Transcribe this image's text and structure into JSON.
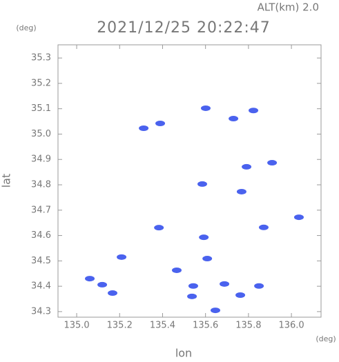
{
  "chart_data": {
    "type": "scatter",
    "title": "2021/12/25 20:22:47",
    "subtitle": "ALT(km)  2.0",
    "x_label": "lon",
    "y_label": "lat",
    "x_unit": "(deg)",
    "y_unit": "(deg)",
    "color": "#4a62ee",
    "x": [
      135.312,
      135.389,
      135.601,
      135.73,
      135.823,
      135.91,
      135.791,
      135.768,
      135.585,
      135.871,
      136.035,
      135.209,
      135.608,
      135.592,
      135.119,
      135.061,
      135.167,
      135.543,
      135.537,
      135.688,
      135.762,
      135.646,
      135.466,
      135.849,
      135.383
    ],
    "values": [
      35.023,
      35.042,
      35.102,
      35.061,
      35.093,
      34.887,
      34.871,
      34.773,
      34.803,
      34.632,
      34.672,
      34.515,
      34.509,
      34.593,
      34.406,
      34.43,
      34.373,
      34.401,
      34.36,
      34.409,
      34.365,
      34.305,
      34.463,
      34.401,
      34.631
    ],
    "xlim": [
      134.913,
      136.138
    ],
    "ylim": [
      34.278,
      35.352
    ],
    "xticks": [
      {
        "value": 135,
        "label": "135.0"
      },
      135.2,
      135.4,
      135.6,
      135.8,
      {
        "value": 136,
        "label": "136.0"
      }
    ],
    "yticks": [
      34.3,
      34.4,
      34.5,
      34.6,
      34.7,
      34.8,
      34.9,
      {
        "value": 35,
        "label": "35.0"
      },
      35.1,
      35.2,
      35.3
    ]
  }
}
